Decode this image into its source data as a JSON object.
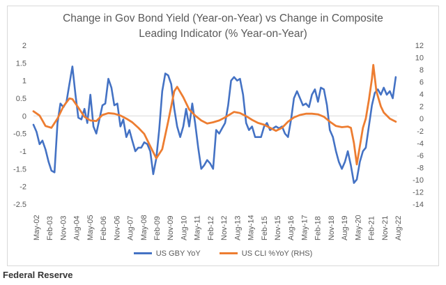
{
  "title_line1": "Change in Gov Bond Yield (Year-on-Year) vs Change in Composite",
  "title_line2": "Leading Indicator (% Year-on-Year)",
  "source": "Federal Reserve",
  "chart_data": {
    "type": "line",
    "title": "Change in Gov Bond Yield (Year-on-Year) vs Change in Composite Leading Indicator (% Year-on-Year)",
    "x_tick_labels": [
      "May-02",
      "Feb-03",
      "Nov-03",
      "Aug-04",
      "May-05",
      "Feb-06",
      "Nov-06",
      "Aug-07",
      "May-08",
      "Feb-09",
      "Nov-09",
      "Aug-10",
      "May-11",
      "Feb-12",
      "Nov-12",
      "Aug-13",
      "May-14",
      "Feb-15",
      "Nov-15",
      "Aug-16",
      "May-17",
      "Feb-18",
      "Nov-18",
      "Aug-19",
      "May-20",
      "Feb-21",
      "Nov-21",
      "Aug-22"
    ],
    "y_left_ticks": [
      "2",
      "1.5",
      "1",
      "0.5",
      "0",
      "-0.5",
      "-1",
      "-1.5",
      "-2",
      "-2.5"
    ],
    "y_left_range": [
      -2.5,
      2
    ],
    "y_right_ticks": [
      "12",
      "10",
      "8",
      "6",
      "4",
      "2",
      "0",
      "-2",
      "-4",
      "-6",
      "-8",
      "-10",
      "-12",
      "-14"
    ],
    "y_right_range": [
      -14,
      12
    ],
    "grid": false,
    "legend_position": "bottom",
    "series": [
      {
        "name": "US GBY YoY",
        "axis": "left",
        "color": "#4472c4",
        "points": [
          [
            2002.33,
            -0.25
          ],
          [
            2002.5,
            -0.45
          ],
          [
            2002.67,
            -0.8
          ],
          [
            2002.83,
            -0.7
          ],
          [
            2003.0,
            -0.95
          ],
          [
            2003.17,
            -1.3
          ],
          [
            2003.33,
            -1.55
          ],
          [
            2003.5,
            -1.6
          ],
          [
            2003.67,
            -0.2
          ],
          [
            2003.83,
            0.35
          ],
          [
            2004.0,
            0.25
          ],
          [
            2004.17,
            0.4
          ],
          [
            2004.33,
            0.9
          ],
          [
            2004.5,
            1.4
          ],
          [
            2004.67,
            0.6
          ],
          [
            2004.83,
            -0.05
          ],
          [
            2005.0,
            -0.1
          ],
          [
            2005.17,
            0.2
          ],
          [
            2005.33,
            -0.2
          ],
          [
            2005.5,
            0.6
          ],
          [
            2005.67,
            -0.3
          ],
          [
            2005.83,
            -0.5
          ],
          [
            2006.0,
            -0.1
          ],
          [
            2006.17,
            0.3
          ],
          [
            2006.33,
            0.35
          ],
          [
            2006.5,
            1.05
          ],
          [
            2006.67,
            0.8
          ],
          [
            2006.83,
            0.3
          ],
          [
            2007.0,
            0.35
          ],
          [
            2007.17,
            -0.3
          ],
          [
            2007.33,
            -0.1
          ],
          [
            2007.5,
            -0.6
          ],
          [
            2007.67,
            -0.4
          ],
          [
            2007.83,
            -0.7
          ],
          [
            2008.0,
            -1.0
          ],
          [
            2008.17,
            -0.9
          ],
          [
            2008.33,
            -0.9
          ],
          [
            2008.5,
            -0.75
          ],
          [
            2008.67,
            -0.8
          ],
          [
            2008.83,
            -1.0
          ],
          [
            2009.0,
            -1.65
          ],
          [
            2009.17,
            -1.2
          ],
          [
            2009.33,
            -0.4
          ],
          [
            2009.5,
            0.7
          ],
          [
            2009.67,
            1.2
          ],
          [
            2009.83,
            1.15
          ],
          [
            2010.0,
            0.9
          ],
          [
            2010.17,
            0.2
          ],
          [
            2010.33,
            -0.3
          ],
          [
            2010.5,
            -0.6
          ],
          [
            2010.67,
            -0.3
          ],
          [
            2010.83,
            0.2
          ],
          [
            2011.0,
            -0.3
          ],
          [
            2011.17,
            0.35
          ],
          [
            2011.33,
            -0.2
          ],
          [
            2011.5,
            -0.9
          ],
          [
            2011.67,
            -1.5
          ],
          [
            2011.83,
            -1.4
          ],
          [
            2012.0,
            -1.25
          ],
          [
            2012.17,
            -1.35
          ],
          [
            2012.33,
            -1.5
          ],
          [
            2012.5,
            -0.4
          ],
          [
            2012.67,
            -0.5
          ],
          [
            2012.83,
            -0.35
          ],
          [
            2013.0,
            -0.2
          ],
          [
            2013.17,
            0.3
          ],
          [
            2013.33,
            1.0
          ],
          [
            2013.5,
            1.1
          ],
          [
            2013.67,
            1.0
          ],
          [
            2013.83,
            1.05
          ],
          [
            2014.0,
            0.6
          ],
          [
            2014.17,
            -0.2
          ],
          [
            2014.33,
            -0.4
          ],
          [
            2014.5,
            -0.3
          ],
          [
            2014.67,
            -0.6
          ],
          [
            2014.83,
            -0.6
          ],
          [
            2015.0,
            -0.6
          ],
          [
            2015.17,
            -0.3
          ],
          [
            2015.33,
            -0.2
          ],
          [
            2015.5,
            -0.4
          ],
          [
            2015.67,
            -0.35
          ],
          [
            2015.83,
            -0.3
          ],
          [
            2016.0,
            -0.35
          ],
          [
            2016.17,
            -0.3
          ],
          [
            2016.33,
            -0.5
          ],
          [
            2016.5,
            -0.6
          ],
          [
            2016.67,
            -0.1
          ],
          [
            2016.83,
            0.5
          ],
          [
            2017.0,
            0.7
          ],
          [
            2017.17,
            0.5
          ],
          [
            2017.33,
            0.3
          ],
          [
            2017.5,
            0.35
          ],
          [
            2017.67,
            0.25
          ],
          [
            2017.83,
            0.6
          ],
          [
            2018.0,
            0.75
          ],
          [
            2018.17,
            0.4
          ],
          [
            2018.33,
            0.8
          ],
          [
            2018.5,
            0.75
          ],
          [
            2018.67,
            0.3
          ],
          [
            2018.83,
            -0.4
          ],
          [
            2019.0,
            -0.6
          ],
          [
            2019.17,
            -1.0
          ],
          [
            2019.33,
            -1.3
          ],
          [
            2019.5,
            -1.5
          ],
          [
            2019.67,
            -1.3
          ],
          [
            2019.83,
            -1.0
          ],
          [
            2020.0,
            -1.4
          ],
          [
            2020.17,
            -1.9
          ],
          [
            2020.33,
            -1.8
          ],
          [
            2020.5,
            -1.3
          ],
          [
            2020.67,
            -1.0
          ],
          [
            2020.83,
            -0.9
          ],
          [
            2021.0,
            -0.3
          ],
          [
            2021.17,
            0.3
          ],
          [
            2021.33,
            0.65
          ],
          [
            2021.5,
            0.75
          ],
          [
            2021.67,
            0.6
          ],
          [
            2021.83,
            0.8
          ],
          [
            2022.0,
            0.6
          ],
          [
            2022.17,
            0.7
          ],
          [
            2022.33,
            0.5
          ],
          [
            2022.5,
            1.1
          ]
        ]
      },
      {
        "name": "US CLI %YoY (RHS)",
        "axis": "right",
        "color": "#ed7d31",
        "points": [
          [
            2002.33,
            1.2
          ],
          [
            2002.67,
            0.5
          ],
          [
            2002.83,
            -0.3
          ],
          [
            2003.0,
            -1.2
          ],
          [
            2003.33,
            -1.5
          ],
          [
            2003.67,
            0.0
          ],
          [
            2004.0,
            2.0
          ],
          [
            2004.33,
            3.3
          ],
          [
            2004.5,
            3.2
          ],
          [
            2004.83,
            1.8
          ],
          [
            2005.17,
            0.3
          ],
          [
            2005.5,
            -0.3
          ],
          [
            2005.83,
            -0.4
          ],
          [
            2006.17,
            0.6
          ],
          [
            2006.5,
            0.9
          ],
          [
            2006.83,
            0.8
          ],
          [
            2007.17,
            0.5
          ],
          [
            2007.5,
            0.0
          ],
          [
            2007.83,
            -0.6
          ],
          [
            2008.17,
            -1.5
          ],
          [
            2008.5,
            -2.5
          ],
          [
            2008.83,
            -4.5
          ],
          [
            2009.17,
            -6.5
          ],
          [
            2009.5,
            -5.0
          ],
          [
            2009.83,
            -0.5
          ],
          [
            2010.17,
            4.5
          ],
          [
            2010.33,
            5.2
          ],
          [
            2010.67,
            3.5
          ],
          [
            2011.0,
            1.5
          ],
          [
            2011.33,
            0.5
          ],
          [
            2011.67,
            -0.3
          ],
          [
            2012.0,
            -0.8
          ],
          [
            2012.33,
            -0.6
          ],
          [
            2012.67,
            -0.3
          ],
          [
            2013.0,
            0.2
          ],
          [
            2013.33,
            0.8
          ],
          [
            2013.5,
            1.1
          ],
          [
            2013.83,
            0.9
          ],
          [
            2014.17,
            0.4
          ],
          [
            2014.5,
            -0.2
          ],
          [
            2014.83,
            -0.7
          ],
          [
            2015.17,
            -1.0
          ],
          [
            2015.5,
            -1.5
          ],
          [
            2015.83,
            -2.0
          ],
          [
            2016.17,
            -1.5
          ],
          [
            2016.5,
            -0.5
          ],
          [
            2016.83,
            0.2
          ],
          [
            2017.17,
            0.6
          ],
          [
            2017.5,
            0.8
          ],
          [
            2017.83,
            0.8
          ],
          [
            2018.17,
            0.7
          ],
          [
            2018.5,
            0.3
          ],
          [
            2018.83,
            -0.5
          ],
          [
            2019.17,
            -1.2
          ],
          [
            2019.5,
            -1.4
          ],
          [
            2019.83,
            -1.3
          ],
          [
            2020.0,
            -1.5
          ],
          [
            2020.17,
            -4.0
          ],
          [
            2020.33,
            -7.5
          ],
          [
            2020.5,
            -4.5
          ],
          [
            2020.67,
            -1.5
          ],
          [
            2020.83,
            0.0
          ],
          [
            2021.0,
            3.0
          ],
          [
            2021.17,
            6.5
          ],
          [
            2021.25,
            8.8
          ],
          [
            2021.42,
            4.5
          ],
          [
            2021.67,
            2.0
          ],
          [
            2021.83,
            1.0
          ],
          [
            2022.17,
            0.0
          ],
          [
            2022.5,
            -0.5
          ]
        ]
      }
    ]
  }
}
